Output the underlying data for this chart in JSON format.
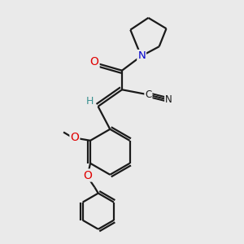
{
  "bg_color": "#eaeaea",
  "bond_color": "#1a1a1a",
  "bond_width": 1.6,
  "atom_colors": {
    "O": "#e00000",
    "N": "#0000cc",
    "H": "#3a9090"
  },
  "layout": {
    "xlim": [
      0,
      10
    ],
    "ylim": [
      0,
      10
    ]
  }
}
